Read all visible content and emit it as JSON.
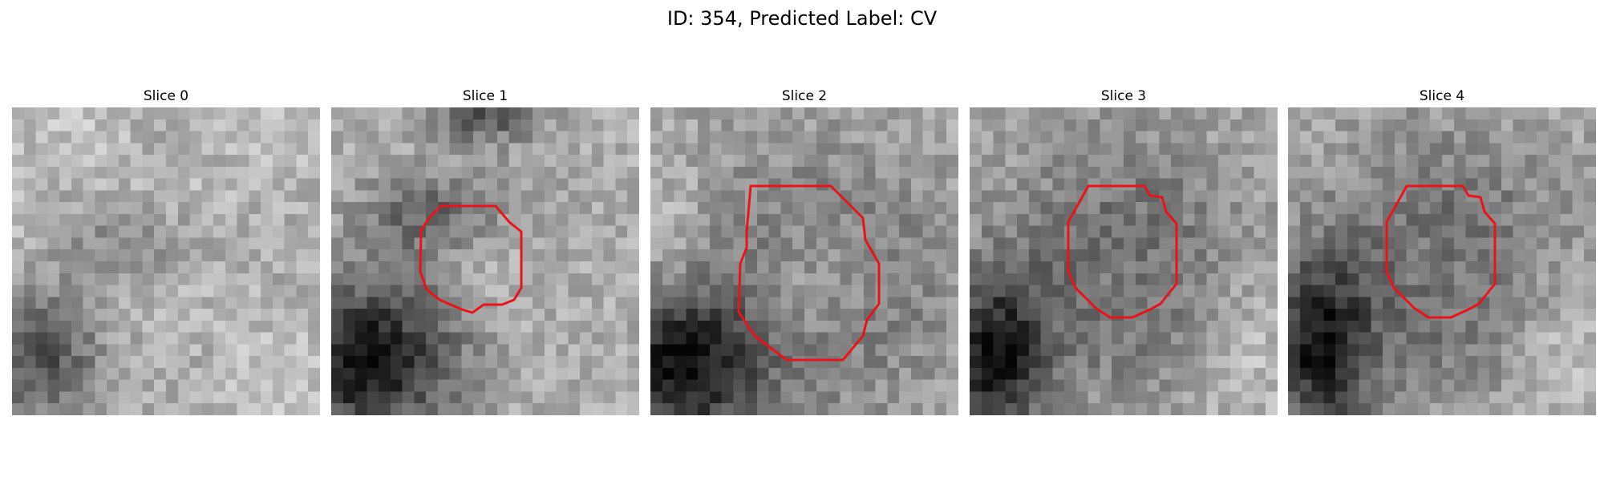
{
  "figure": {
    "title": "ID: 354, Predicted Label: CV"
  },
  "slices": [
    {
      "title": "Slice 0",
      "has_contour": false
    },
    {
      "title": "Slice 1",
      "has_contour": true
    },
    {
      "title": "Slice 2",
      "has_contour": true
    },
    {
      "title": "Slice 3",
      "has_contour": true
    },
    {
      "title": "Slice 4",
      "has_contour": true
    }
  ],
  "colors": {
    "contour": "#e8141a",
    "background": "#ffffff"
  },
  "colormap": "gray"
}
